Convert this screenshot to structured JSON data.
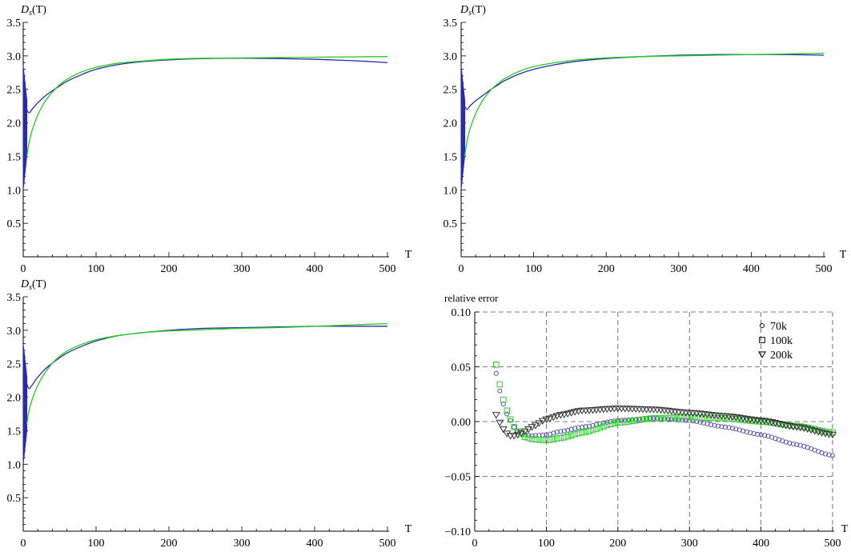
{
  "chart_data": [
    {
      "type": "line",
      "title": "",
      "ylabel": "D_s(T)",
      "ylabel_main": "D",
      "ylabel_sub": "s",
      "ylabel_tail": "(T)",
      "xlabel": "T",
      "xlim": [
        0,
        500
      ],
      "ylim": [
        0,
        3.5
      ],
      "xticks": [
        0,
        100,
        200,
        300,
        400,
        500
      ],
      "yticks": [
        0.5,
        1.0,
        1.5,
        2.0,
        2.5,
        3.0,
        3.5
      ],
      "ytick_labels": [
        "0.5",
        "1.0",
        "1.5",
        "2.0",
        "2.5",
        "3.0",
        "3.5"
      ],
      "grid": false,
      "series": [
        {
          "color": "#2b2ba8",
          "x": [
            1,
            3,
            5,
            8,
            12,
            20,
            30,
            40,
            50,
            60,
            80,
            100,
            130,
            160,
            200,
            250,
            300,
            350,
            400,
            450,
            500
          ],
          "y": [
            2.6,
            2.3,
            2.2,
            2.15,
            2.2,
            2.3,
            2.4,
            2.48,
            2.55,
            2.62,
            2.72,
            2.8,
            2.87,
            2.91,
            2.94,
            2.96,
            2.965,
            2.96,
            2.95,
            2.93,
            2.9
          ]
        },
        {
          "color": "#22cc22",
          "x": [
            5,
            8,
            12,
            20,
            30,
            40,
            50,
            60,
            80,
            100,
            130,
            160,
            200,
            250,
            300,
            350,
            400,
            450,
            500
          ],
          "y": [
            1.5,
            1.7,
            1.88,
            2.12,
            2.32,
            2.46,
            2.57,
            2.65,
            2.76,
            2.83,
            2.89,
            2.92,
            2.95,
            2.965,
            2.97,
            2.975,
            2.98,
            2.985,
            2.99
          ]
        }
      ],
      "noise": {
        "x_max": 5,
        "y_range": [
          1.0,
          2.85
        ],
        "color": "#2b2ba8"
      }
    },
    {
      "type": "line",
      "title": "",
      "ylabel": "D_s(T)",
      "ylabel_main": "D",
      "ylabel_sub": "s",
      "ylabel_tail": "(T)",
      "xlabel": "T",
      "xlim": [
        0,
        500
      ],
      "ylim": [
        0,
        3.5
      ],
      "xticks": [
        0,
        100,
        200,
        300,
        400,
        500
      ],
      "yticks": [
        0.5,
        1.0,
        1.5,
        2.0,
        2.5,
        3.0,
        3.5
      ],
      "ytick_labels": [
        "0.5",
        "1.0",
        "1.5",
        "2.0",
        "2.5",
        "3.0",
        "3.5"
      ],
      "grid": false,
      "series": [
        {
          "color": "#2b2ba8",
          "x": [
            1,
            3,
            5,
            8,
            12,
            20,
            30,
            40,
            50,
            60,
            80,
            100,
            130,
            160,
            200,
            250,
            300,
            350,
            400,
            450,
            500
          ],
          "y": [
            2.6,
            2.35,
            2.25,
            2.2,
            2.25,
            2.33,
            2.41,
            2.49,
            2.56,
            2.63,
            2.73,
            2.8,
            2.87,
            2.92,
            2.96,
            2.99,
            3.01,
            3.02,
            3.02,
            3.02,
            3.01
          ]
        },
        {
          "color": "#22cc22",
          "x": [
            5,
            8,
            12,
            20,
            30,
            40,
            50,
            60,
            80,
            100,
            130,
            160,
            200,
            250,
            300,
            350,
            400,
            450,
            500
          ],
          "y": [
            1.5,
            1.72,
            1.9,
            2.14,
            2.34,
            2.48,
            2.58,
            2.66,
            2.77,
            2.84,
            2.9,
            2.94,
            2.97,
            2.99,
            3.0,
            3.01,
            3.02,
            3.03,
            3.04
          ]
        }
      ],
      "noise": {
        "x_max": 5,
        "y_range": [
          1.0,
          2.85
        ],
        "color": "#2b2ba8"
      }
    },
    {
      "type": "line",
      "title": "",
      "ylabel": "D_s(T)",
      "ylabel_main": "D",
      "ylabel_sub": "s",
      "ylabel_tail": "(T)",
      "xlabel": "T",
      "xlim": [
        0,
        500
      ],
      "ylim": [
        0,
        3.5
      ],
      "xticks": [
        0,
        100,
        200,
        300,
        400,
        500
      ],
      "yticks": [
        0.5,
        1.0,
        1.5,
        2.0,
        2.5,
        3.0,
        3.5
      ],
      "ytick_labels": [
        "0.5",
        "1.0",
        "1.5",
        "2.0",
        "2.5",
        "3.0",
        "3.5"
      ],
      "grid": false,
      "series": [
        {
          "color": "#2b2ba8",
          "x": [
            1,
            3,
            5,
            8,
            12,
            20,
            30,
            40,
            50,
            60,
            80,
            100,
            130,
            160,
            200,
            250,
            300,
            350,
            400,
            450,
            500
          ],
          "y": [
            2.6,
            2.3,
            2.2,
            2.13,
            2.18,
            2.3,
            2.42,
            2.51,
            2.59,
            2.66,
            2.76,
            2.84,
            2.92,
            2.96,
            3.0,
            3.03,
            3.04,
            3.05,
            3.06,
            3.06,
            3.06
          ]
        },
        {
          "color": "#22cc22",
          "x": [
            5,
            8,
            12,
            20,
            30,
            40,
            50,
            60,
            80,
            100,
            130,
            160,
            200,
            250,
            300,
            350,
            400,
            450,
            500
          ],
          "y": [
            1.6,
            1.8,
            1.96,
            2.18,
            2.37,
            2.51,
            2.61,
            2.69,
            2.79,
            2.86,
            2.92,
            2.96,
            2.99,
            3.01,
            3.03,
            3.04,
            3.06,
            3.08,
            3.1
          ]
        }
      ],
      "noise": {
        "x_max": 5,
        "y_range": [
          1.0,
          2.8
        ],
        "color": "#2b2ba8"
      }
    },
    {
      "type": "scatter",
      "title": "",
      "ylabel": "relative error",
      "xlabel": "T",
      "xlim": [
        0,
        500
      ],
      "ylim": [
        -0.1,
        0.1
      ],
      "xticks": [
        0,
        100,
        200,
        300,
        400,
        500
      ],
      "yticks": [
        -0.1,
        -0.05,
        0.0,
        0.05,
        0.1
      ],
      "ytick_labels": [
        "−0.10",
        "−0.05",
        "0.00",
        "0.05",
        "0.10"
      ],
      "grid": true,
      "legend_position": "top-right",
      "series": [
        {
          "name": "70k",
          "marker": "circle",
          "color": "#4a4aa8",
          "x": [
            30,
            35,
            40,
            45,
            50,
            55,
            60,
            70,
            80,
            100,
            120,
            150,
            200,
            250,
            300,
            350,
            400,
            450,
            500
          ],
          "y": [
            0.044,
            0.028,
            0.016,
            0.007,
            0.001,
            -0.005,
            -0.009,
            -0.012,
            -0.013,
            -0.012,
            -0.009,
            -0.005,
            0.001,
            0.003,
            0.001,
            -0.005,
            -0.012,
            -0.021,
            -0.031
          ]
        },
        {
          "name": "100k",
          "marker": "square",
          "color": "#33cc33",
          "x": [
            30,
            35,
            40,
            45,
            50,
            55,
            60,
            70,
            80,
            100,
            120,
            150,
            200,
            250,
            300,
            350,
            400,
            450,
            500
          ],
          "y": [
            0.052,
            0.034,
            0.02,
            0.01,
            0.002,
            -0.005,
            -0.009,
            -0.014,
            -0.016,
            -0.017,
            -0.015,
            -0.01,
            -0.001,
            0.003,
            0.004,
            0.003,
            0.0,
            -0.004,
            -0.01
          ]
        },
        {
          "name": "200k",
          "marker": "triangle-down",
          "color": "#333333",
          "x": [
            30,
            35,
            40,
            45,
            50,
            55,
            60,
            70,
            80,
            100,
            120,
            150,
            200,
            250,
            300,
            350,
            400,
            450,
            500
          ],
          "y": [
            0.006,
            -0.001,
            -0.007,
            -0.011,
            -0.013,
            -0.013,
            -0.012,
            -0.009,
            -0.005,
            0.002,
            0.006,
            0.01,
            0.012,
            0.011,
            0.008,
            0.005,
            0.001,
            -0.005,
            -0.012
          ]
        }
      ]
    }
  ]
}
